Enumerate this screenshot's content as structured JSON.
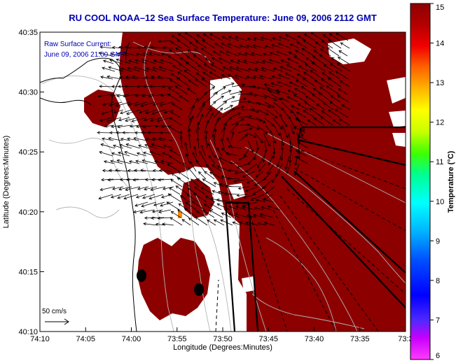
{
  "title": "RU COOL  NOAA–12  Sea Surface Temperature:  June 09, 2006 2112 GMT",
  "annotation": {
    "line1": "Raw Surface Current:",
    "line2": "June 09, 2006 21:00 GMT"
  },
  "scale_label": "50 cm/s",
  "x_axis": {
    "label": "Longitude (Degrees:Minutes)",
    "ticks": [
      "74:10",
      "74:05",
      "74:00",
      "73:55",
      "73:50",
      "73:45",
      "73:40",
      "73:35",
      "73:3"
    ]
  },
  "y_axis": {
    "label": "Latitude (Degrees:Minutes)",
    "ticks": [
      "40:35",
      "40:30",
      "40:25",
      "40:20",
      "40:15",
      "40:10"
    ]
  },
  "colorbar": {
    "label": "Temperature (°C)",
    "min": 6,
    "max": 15,
    "ticks": [
      "15",
      "14",
      "13",
      "12",
      "11",
      "10",
      "9",
      "8",
      "7",
      "6"
    ]
  },
  "colors": {
    "sst": "#8c0000",
    "land": "#ffffff",
    "vectors": "#000000",
    "title": "#0000b4"
  }
}
